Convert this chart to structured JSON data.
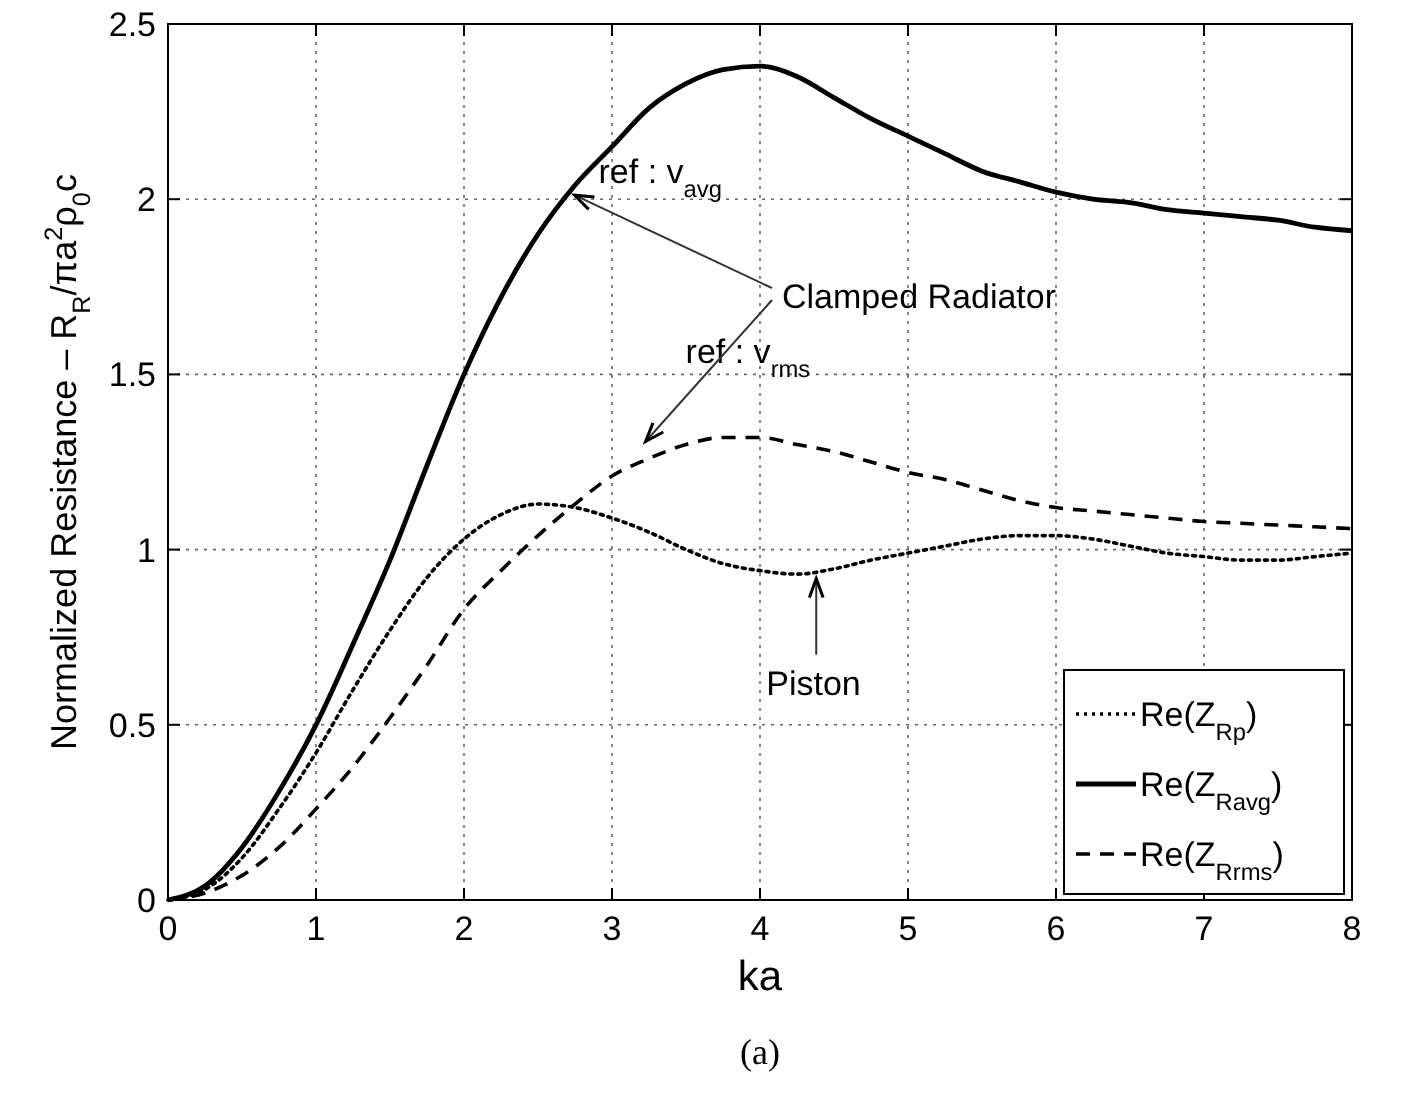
{
  "chart_data": {
    "type": "line",
    "xlabel": "ka",
    "ylabel": "Normalized Resistance – R$_{R}$/πa$^{2}$ρ$_{0}$c",
    "xlim": [
      0,
      8
    ],
    "xticks": [
      0,
      1,
      2,
      3,
      4,
      5,
      6,
      7,
      8
    ],
    "ylim": [
      0,
      2.5
    ],
    "yticks": [
      0,
      0.5,
      1,
      1.5,
      2,
      2.5
    ],
    "grid": true,
    "legend": "bottom right",
    "x": [
      0,
      0.25,
      0.5,
      0.75,
      1,
      1.25,
      1.5,
      1.75,
      2,
      2.25,
      2.5,
      2.75,
      3,
      3.25,
      3.5,
      3.75,
      4,
      4.25,
      4.5,
      4.75,
      5,
      5.25,
      5.5,
      5.75,
      6,
      6.25,
      6.5,
      6.75,
      7,
      7.25,
      7.5,
      7.75,
      8
    ],
    "series": [
      {
        "name": "Re(Z$_{Rp}$)",
        "color": "#000000",
        "line_style": "dotted",
        "values": [
          0,
          0.03,
          0.12,
          0.26,
          0.42,
          0.6,
          0.77,
          0.92,
          1.03,
          1.1,
          1.13,
          1.12,
          1.09,
          1.05,
          1.0,
          0.96,
          0.94,
          0.93,
          0.945,
          0.97,
          0.99,
          1.01,
          1.03,
          1.04,
          1.04,
          1.03,
          1.01,
          0.99,
          0.98,
          0.97,
          0.97,
          0.98,
          0.99
        ]
      },
      {
        "name": "Re(Z$_{Ravg}$)",
        "color": "#000000",
        "line_style": "solid",
        "values": [
          0,
          0.04,
          0.15,
          0.31,
          0.5,
          0.73,
          0.97,
          1.24,
          1.5,
          1.72,
          1.9,
          2.04,
          2.15,
          2.26,
          2.33,
          2.37,
          2.38,
          2.35,
          2.29,
          2.23,
          2.18,
          2.13,
          2.08,
          2.05,
          2.02,
          2.0,
          1.99,
          1.97,
          1.96,
          1.95,
          1.94,
          1.92,
          1.91
        ]
      },
      {
        "name": "Re(Z$_{Rrms}$)",
        "color": "#000000",
        "line_style": "dashed",
        "values": [
          0,
          0.02,
          0.07,
          0.15,
          0.26,
          0.38,
          0.52,
          0.67,
          0.83,
          0.94,
          1.04,
          1.13,
          1.21,
          1.26,
          1.3,
          1.32,
          1.32,
          1.3,
          1.28,
          1.25,
          1.22,
          1.2,
          1.17,
          1.14,
          1.12,
          1.11,
          1.1,
          1.09,
          1.08,
          1.075,
          1.07,
          1.065,
          1.06
        ]
      }
    ],
    "annotations": [
      {
        "text": "ref : v$_{avg}$",
        "x": 2.72,
        "y": 2.0
      },
      {
        "text": "ref : v$_{rms}$",
        "x": 3.2,
        "y": 1.28
      },
      {
        "text": "Clamped Radiator",
        "x": 3.2,
        "y": 1.28
      },
      {
        "text": "Piston",
        "x": 4.38,
        "y": 0.94
      },
      "(a)"
    ]
  }
}
